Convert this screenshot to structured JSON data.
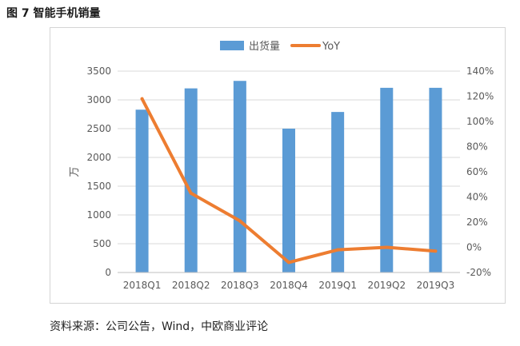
{
  "figure_title": "图 7 智能手机销量",
  "source": "资料来源：公司公告，Wind，中欧商业评论",
  "colors": {
    "bar": "#5b9bd5",
    "line": "#ed7d31",
    "grid": "#d9d9d9",
    "text": "#595959"
  },
  "chart_data": {
    "type": "bar",
    "categories": [
      "2018Q1",
      "2018Q2",
      "2018Q3",
      "2018Q4",
      "2019Q1",
      "2019Q2",
      "2019Q3"
    ],
    "series": [
      {
        "name": "出货量",
        "type": "bar",
        "axis": "left",
        "values": [
          2830,
          3200,
          3330,
          2500,
          2790,
          3210,
          3210
        ]
      },
      {
        "name": "YoY",
        "type": "line",
        "axis": "right",
        "values": [
          118,
          43,
          21,
          -12,
          -2,
          0,
          -3
        ]
      }
    ],
    "ylabel": "万",
    "ylim": [
      0,
      3500
    ],
    "yticks": [
      "0",
      "500",
      "1000",
      "1500",
      "2000",
      "2500",
      "3000",
      "3500"
    ],
    "y2lim": [
      -20,
      140
    ],
    "y2ticks": [
      "-20%",
      "0%",
      "20%",
      "40%",
      "60%",
      "80%",
      "100%",
      "120%",
      "140%"
    ],
    "legend_position": "top-center",
    "grid": true
  }
}
